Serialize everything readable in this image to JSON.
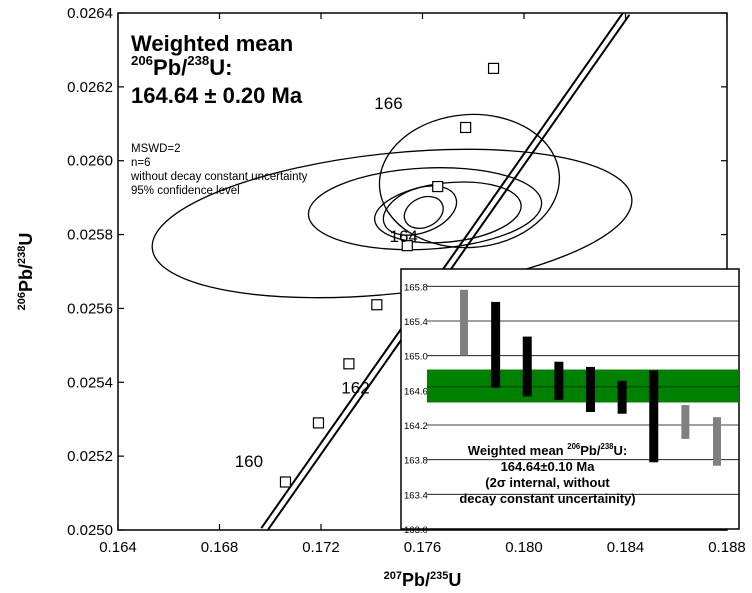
{
  "chart_data": [
    {
      "type": "scatter",
      "subtype": "concordia-diagram",
      "xlabel": {
        "sup": "207",
        "base": "Pb/",
        "sup2": "235",
        "tail": "U"
      },
      "ylabel": {
        "sup": "206",
        "base": "Pb/",
        "sup2": "238",
        "tail": "U"
      },
      "xlim": [
        0.164,
        0.188
      ],
      "ylim": [
        0.025,
        0.0264
      ],
      "xticks": [
        0.164,
        0.168,
        0.172,
        0.176,
        0.18,
        0.184,
        0.188
      ],
      "xtick_labels": [
        "0.164",
        "0.168",
        "0.172",
        "0.176",
        "0.180",
        "0.184",
        "0.188"
      ],
      "yticks": [
        0.025,
        0.0252,
        0.0254,
        0.0256,
        0.0258,
        0.026,
        0.0262,
        0.0264
      ],
      "ytick_labels": [
        "0.0250",
        "0.0252",
        "0.0254",
        "0.0256",
        "0.0258",
        "0.0260",
        "0.0262",
        "0.0264"
      ],
      "concordia_line": {
        "x": [
          0.16975,
          0.18405
        ],
        "y": [
          0.025,
          0.0264
        ]
      },
      "concordia_markers": [
        {
          "x": 0.1706,
          "y": 0.02513
        },
        {
          "x": 0.1719,
          "y": 0.02529
        },
        {
          "x": 0.1731,
          "y": 0.02545
        },
        {
          "x": 0.1742,
          "y": 0.02561
        },
        {
          "x": 0.1754,
          "y": 0.02577
        },
        {
          "x": 0.1766,
          "y": 0.02593
        },
        {
          "x": 0.1777,
          "y": 0.02609
        },
        {
          "x": 0.1788,
          "y": 0.02625
        }
      ],
      "age_labels": [
        {
          "text": "160",
          "x": 0.1686,
          "y": 0.02517
        },
        {
          "text": "162",
          "x": 0.1728,
          "y": 0.02537
        },
        {
          "text": "164",
          "x": 0.1747,
          "y": 0.02578
        },
        {
          "text": "166",
          "x": 0.1741,
          "y": 0.02614
        }
      ],
      "error_ellipses": [
        {
          "cx": 0.17785,
          "cy": 0.025945,
          "rx": 0.00355,
          "ry": 0.00018,
          "rot": -4
        },
        {
          "cx": 0.1748,
          "cy": 0.02583,
          "rx": 0.0095,
          "ry": 0.00019,
          "rot": -6
        },
        {
          "cx": 0.1761,
          "cy": 0.02587,
          "rx": 0.0046,
          "ry": 0.00011,
          "rot": -3
        },
        {
          "cx": 0.177,
          "cy": 0.02586,
          "rx": 0.0029,
          "ry": 8e-05,
          "rot": -6
        },
        {
          "cx": 0.1759,
          "cy": 0.025865,
          "rx": 0.0015,
          "ry": 6e-05,
          "rot": -20
        },
        {
          "cx": 0.17605,
          "cy": 0.02586,
          "rx": 0.0008,
          "ry": 4e-05,
          "rot": -25
        }
      ]
    },
    {
      "type": "bar",
      "subtype": "weighted-mean-inset",
      "ylim": [
        163.0,
        166.0
      ],
      "yticks": [
        163.0,
        163.4,
        163.8,
        164.2,
        164.6,
        165.0,
        165.4,
        165.8
      ],
      "ytick_labels": [
        "163.0",
        "163.4",
        "163.8",
        "164.2",
        "164.6",
        "165.0",
        "165.4",
        "165.8"
      ],
      "mean": 164.64,
      "mean_band": [
        164.46,
        164.84
      ],
      "mean_band_color": "#008000",
      "bars": [
        {
          "low": 165.0,
          "high": 165.76,
          "color": "#808080"
        },
        {
          "low": 164.63,
          "high": 165.62,
          "color": "#000000"
        },
        {
          "low": 164.53,
          "high": 165.22,
          "color": "#000000"
        },
        {
          "low": 164.49,
          "high": 164.93,
          "color": "#000000"
        },
        {
          "low": 164.35,
          "high": 164.87,
          "color": "#000000"
        },
        {
          "low": 164.33,
          "high": 164.71,
          "color": "#000000"
        },
        {
          "low": 163.77,
          "high": 164.83,
          "color": "#000000"
        },
        {
          "low": 164.04,
          "high": 164.43,
          "color": "#808080"
        },
        {
          "low": 163.73,
          "high": 164.29,
          "color": "#808080"
        }
      ]
    }
  ],
  "annotations": {
    "title_line1": "Weighted mean",
    "title_iso_sup1": "206",
    "title_iso_base": "Pb/",
    "title_iso_sup2": "238",
    "title_iso_tail": "U:",
    "title_value": "164.64 ± 0.20 Ma",
    "mswd": "MSWD=2",
    "n": "n=6",
    "note1": "without decay constant uncertainty",
    "note2": "95% confidence level",
    "inset_line1_pre": "Weighted mean ",
    "inset_sup1": "206",
    "inset_base": "Pb/",
    "inset_sup2": "238",
    "inset_tail": "U:",
    "inset_value": "164.64±0.10 Ma",
    "inset_note1": "(2σ internal, without",
    "inset_note2": "decay constant uncertainity)"
  }
}
